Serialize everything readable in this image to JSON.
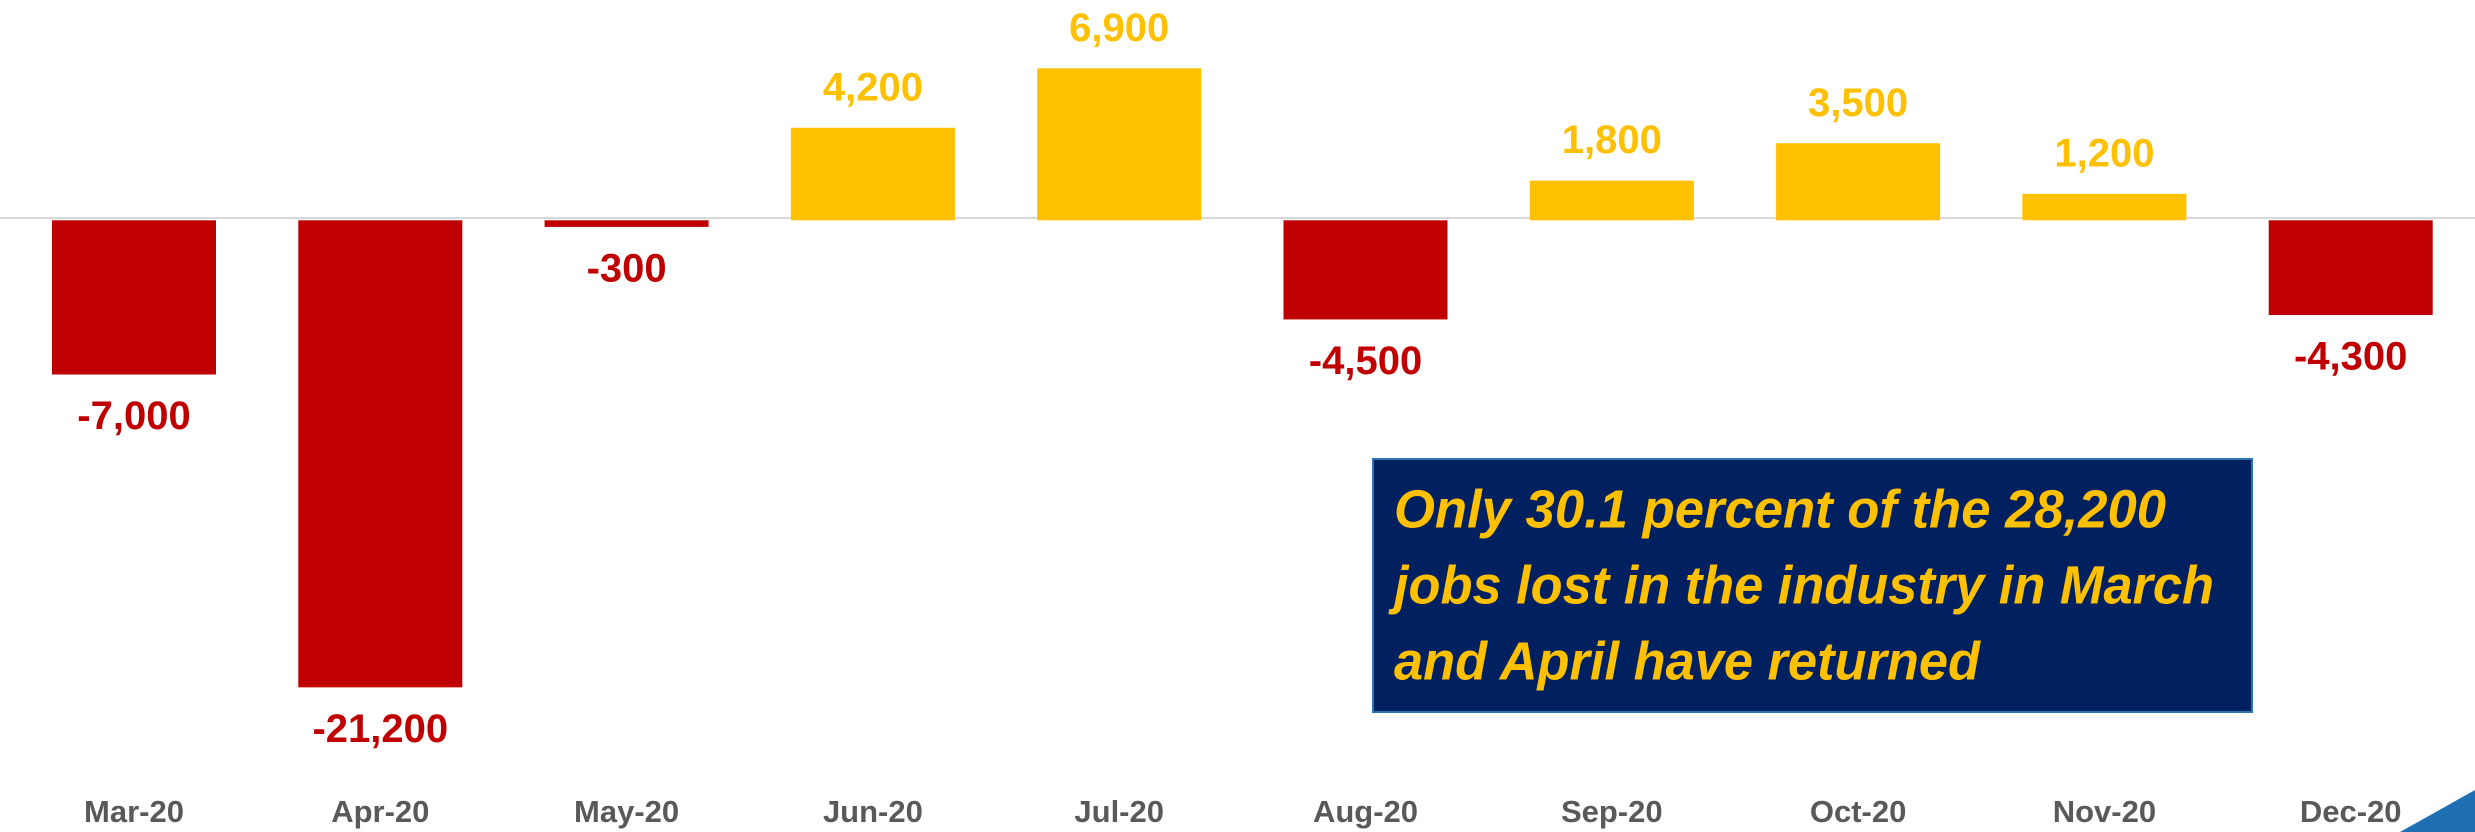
{
  "chart_data": {
    "type": "bar",
    "categories": [
      "Mar-20",
      "Apr-20",
      "May-20",
      "Jun-20",
      "Jul-20",
      "Aug-20",
      "Sep-20",
      "Oct-20",
      "Nov-20",
      "Dec-20"
    ],
    "values": [
      -7000,
      -21200,
      -300,
      4200,
      6900,
      -4500,
      1800,
      3500,
      1200,
      -4300
    ],
    "value_labels": [
      "-7,000",
      "-21,200",
      "-300",
      "4,200",
      "6,900",
      "-4,500",
      "1,800",
      "3,500",
      "1,200",
      "-4,300"
    ],
    "colors": [
      "#c00000",
      "#c00000",
      "#c00000",
      "#ffc000",
      "#ffc000",
      "#c00000",
      "#ffc000",
      "#ffc000",
      "#ffc000",
      "#c00000"
    ],
    "ylim": [
      -23000,
      10000
    ],
    "annotation": [
      "Only 30.1 percent of the 28,200",
      "jobs lost in the industry in March",
      "and April have returned"
    ]
  }
}
